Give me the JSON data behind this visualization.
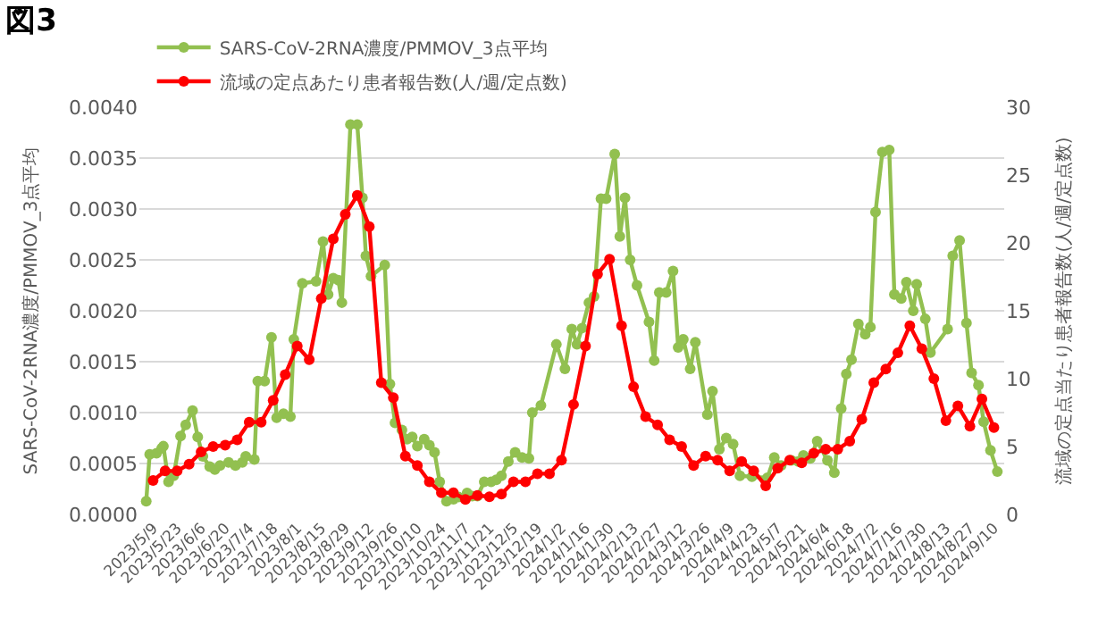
{
  "chart_data": {
    "type": "line",
    "title": "図3",
    "ylabel": "SARS-CoV-2RNA濃度/PMMOV_3点平均",
    "y2label": "流域の定点当たり患者報告数(人/週/定点数)",
    "xlim": [
      "2023-05-01",
      "2024-09-16"
    ],
    "xticks": [
      {
        "value": "2023-05-09",
        "label": "2023/5/9"
      },
      {
        "value": "2023-05-23",
        "label": "2023/5/23"
      },
      {
        "value": "2023-06-06",
        "label": "2023/6/6"
      },
      {
        "value": "2023-06-20",
        "label": "2023/6/20"
      },
      {
        "value": "2023-07-04",
        "label": "2023/7/4"
      },
      {
        "value": "2023-07-18",
        "label": "2023/7/18"
      },
      {
        "value": "2023-08-01",
        "label": "2023/8/1"
      },
      {
        "value": "2023-08-15",
        "label": "2023/8/15"
      },
      {
        "value": "2023-08-29",
        "label": "2023/8/29"
      },
      {
        "value": "2023-09-12",
        "label": "2023/9/12"
      },
      {
        "value": "2023-09-26",
        "label": "2023/9/26"
      },
      {
        "value": "2023-10-10",
        "label": "2023/10/10"
      },
      {
        "value": "2023-10-24",
        "label": "2023/10/24"
      },
      {
        "value": "2023-11-07",
        "label": "2023/11/7"
      },
      {
        "value": "2023-11-21",
        "label": "2023/11/21"
      },
      {
        "value": "2023-12-05",
        "label": "2023/12/5"
      },
      {
        "value": "2023-12-19",
        "label": "2023/12/19"
      },
      {
        "value": "2024-01-02",
        "label": "2024/1/2"
      },
      {
        "value": "2024-01-16",
        "label": "2024/1/16"
      },
      {
        "value": "2024-01-30",
        "label": "2024/1/30"
      },
      {
        "value": "2024-02-13",
        "label": "2024/2/13"
      },
      {
        "value": "2024-02-27",
        "label": "2024/2/27"
      },
      {
        "value": "2024-03-12",
        "label": "2024/3/12"
      },
      {
        "value": "2024-03-26",
        "label": "2024/3/26"
      },
      {
        "value": "2024-04-09",
        "label": "2024/4/9"
      },
      {
        "value": "2024-04-23",
        "label": "2024/4/23"
      },
      {
        "value": "2024-05-07",
        "label": "2024/5/7"
      },
      {
        "value": "2024-05-21",
        "label": "2024/5/21"
      },
      {
        "value": "2024-06-04",
        "label": "2024/6/4"
      },
      {
        "value": "2024-06-18",
        "label": "2024/6/18"
      },
      {
        "value": "2024-07-02",
        "label": "2024/7/2"
      },
      {
        "value": "2024-07-16",
        "label": "2024/7/16"
      },
      {
        "value": "2024-07-30",
        "label": "2024/7/30"
      },
      {
        "value": "2024-08-13",
        "label": "2024/8/13"
      },
      {
        "value": "2024-08-27",
        "label": "2024/8/27"
      },
      {
        "value": "2024-09-10",
        "label": "2024/9/10"
      }
    ],
    "ylim": [
      0,
      0.004
    ],
    "yticks": [
      {
        "value": 0,
        "label": "0.0000"
      },
      {
        "value": 0.0005,
        "label": "0.0005"
      },
      {
        "value": 0.001,
        "label": "0.0010"
      },
      {
        "value": 0.0015,
        "label": "0.0015"
      },
      {
        "value": 0.002,
        "label": "0.0020"
      },
      {
        "value": 0.0025,
        "label": "0.0025"
      },
      {
        "value": 0.003,
        "label": "0.0030"
      },
      {
        "value": 0.0035,
        "label": "0.0035"
      },
      {
        "value": 0.004,
        "label": "0.0040"
      }
    ],
    "y2lim": [
      0,
      30
    ],
    "y2ticks": [
      0,
      5,
      10,
      15,
      20,
      25,
      30
    ],
    "grid": "y",
    "legend": "top left",
    "marker": "circle",
    "line_style": "solid",
    "series": [
      {
        "name": "SARS-CoV-2RNA濃度/PMMOV_3点平均",
        "color": "#92c050",
        "x": [
          "2023-05-05",
          "2023-05-07",
          "2023-05-11",
          "2023-05-14",
          "2023-05-15",
          "2023-05-18",
          "2023-05-21",
          "2023-05-25",
          "2023-05-28",
          "2023-06-01",
          "2023-06-04",
          "2023-06-07",
          "2023-06-11",
          "2023-06-14",
          "2023-06-17",
          "2023-06-22",
          "2023-06-26",
          "2023-06-30",
          "2023-07-02",
          "2023-07-07",
          "2023-07-09",
          "2023-07-13",
          "2023-07-17",
          "2023-07-20",
          "2023-07-24",
          "2023-07-28",
          "2023-07-30",
          "2023-08-04",
          "2023-08-12",
          "2023-08-16",
          "2023-08-19",
          "2023-08-22",
          "2023-08-25",
          "2023-08-27",
          "2023-09-01",
          "2023-09-05",
          "2023-09-08",
          "2023-09-10",
          "2023-09-13",
          "2023-09-21",
          "2023-09-24",
          "2023-09-27",
          "2023-10-01",
          "2023-10-04",
          "2023-10-07",
          "2023-10-10",
          "2023-10-14",
          "2023-10-17",
          "2023-10-20",
          "2023-10-23",
          "2023-10-27",
          "2023-10-31",
          "2023-11-03",
          "2023-11-08",
          "2023-11-11",
          "2023-11-14",
          "2023-11-18",
          "2023-11-22",
          "2023-11-25",
          "2023-11-28",
          "2023-12-02",
          "2023-12-06",
          "2023-12-10",
          "2023-12-14",
          "2023-12-16",
          "2023-12-21",
          "2023-12-30",
          "2024-01-04",
          "2024-01-08",
          "2024-01-11",
          "2024-01-14",
          "2024-01-18",
          "2024-01-21",
          "2024-01-25",
          "2024-01-28",
          "2024-02-02",
          "2024-02-05",
          "2024-02-08",
          "2024-02-11",
          "2024-02-15",
          "2024-02-22",
          "2024-02-25",
          "2024-02-28",
          "2024-03-03",
          "2024-03-07",
          "2024-03-10",
          "2024-03-13",
          "2024-03-17",
          "2024-03-20",
          "2024-03-27",
          "2024-03-30",
          "2024-04-03",
          "2024-04-07",
          "2024-04-11",
          "2024-04-15",
          "2024-04-22",
          "2024-05-01",
          "2024-05-05",
          "2024-05-09",
          "2024-05-15",
          "2024-05-19",
          "2024-05-22",
          "2024-05-26",
          "2024-05-30",
          "2024-06-05",
          "2024-06-09",
          "2024-06-13",
          "2024-06-16",
          "2024-06-19",
          "2024-06-23",
          "2024-06-27",
          "2024-06-30",
          "2024-07-03",
          "2024-07-07",
          "2024-07-11",
          "2024-07-14",
          "2024-07-18",
          "2024-07-21",
          "2024-07-25",
          "2024-07-27",
          "2024-08-01",
          "2024-08-04",
          "2024-08-14",
          "2024-08-17",
          "2024-08-21",
          "2024-08-25",
          "2024-08-28",
          "2024-09-01",
          "2024-09-04",
          "2024-09-08",
          "2024-09-12"
        ],
        "values": [
          0.00013,
          0.00059,
          0.0006,
          0.00065,
          0.00067,
          0.00032,
          0.00038,
          0.00077,
          0.00088,
          0.00102,
          0.00076,
          0.00057,
          0.00047,
          0.00044,
          0.00048,
          0.00051,
          0.00048,
          0.00051,
          0.00057,
          0.00054,
          0.00131,
          0.00131,
          0.00174,
          0.00095,
          0.00099,
          0.00096,
          0.00172,
          0.00227,
          0.00229,
          0.00268,
          0.00216,
          0.00232,
          0.0023,
          0.00208,
          0.00383,
          0.00383,
          0.00311,
          0.00254,
          0.00234,
          0.00245,
          0.00128,
          0.0009,
          0.00083,
          0.00074,
          0.00076,
          0.00067,
          0.00074,
          0.00068,
          0.00061,
          0.00032,
          0.00013,
          0.00015,
          0.00017,
          0.00021,
          0.00018,
          0.00018,
          0.00032,
          0.00032,
          0.00034,
          0.00038,
          0.00052,
          0.00061,
          0.00056,
          0.00055,
          0.001,
          0.00107,
          0.00167,
          0.00143,
          0.00182,
          0.00167,
          0.00183,
          0.00208,
          0.00214,
          0.0031,
          0.0031,
          0.00354,
          0.00273,
          0.00311,
          0.0025,
          0.00225,
          0.00189,
          0.00151,
          0.00218,
          0.00218,
          0.00239,
          0.00164,
          0.00172,
          0.00143,
          0.00169,
          0.00098,
          0.00121,
          0.00064,
          0.00075,
          0.00069,
          0.00038,
          0.00037,
          0.00036,
          0.00056,
          0.00048,
          0.00053,
          0.00052,
          0.00058,
          0.00055,
          0.00072,
          0.00053,
          0.00041,
          0.00104,
          0.00138,
          0.00152,
          0.00187,
          0.00177,
          0.00184,
          0.00297,
          0.00356,
          0.00358,
          0.00216,
          0.00212,
          0.00228,
          0.002,
          0.00226,
          0.00192,
          0.00159,
          0.00182,
          0.00254,
          0.00269,
          0.00188,
          0.00139,
          0.00127,
          0.00091,
          0.00063,
          0.00042
        ]
      },
      {
        "name": "流域の定点あたり患者報告数(人/週/定点数)",
        "color": "#ff0000",
        "axis": "y2",
        "x": [
          "2023-05-09",
          "2023-05-16",
          "2023-05-23",
          "2023-05-30",
          "2023-06-06",
          "2023-06-13",
          "2023-06-20",
          "2023-06-27",
          "2023-07-04",
          "2023-07-11",
          "2023-07-18",
          "2023-07-25",
          "2023-08-01",
          "2023-08-08",
          "2023-08-15",
          "2023-08-22",
          "2023-08-29",
          "2023-09-05",
          "2023-09-12",
          "2023-09-19",
          "2023-09-26",
          "2023-10-03",
          "2023-10-10",
          "2023-10-17",
          "2023-10-24",
          "2023-10-31",
          "2023-11-07",
          "2023-11-14",
          "2023-11-21",
          "2023-11-28",
          "2023-12-05",
          "2023-12-12",
          "2023-12-19",
          "2023-12-26",
          "2024-01-02",
          "2024-01-09",
          "2024-01-16",
          "2024-01-23",
          "2024-01-30",
          "2024-02-06",
          "2024-02-13",
          "2024-02-20",
          "2024-02-27",
          "2024-03-05",
          "2024-03-12",
          "2024-03-19",
          "2024-03-26",
          "2024-04-02",
          "2024-04-09",
          "2024-04-16",
          "2024-04-23",
          "2024-04-30",
          "2024-05-07",
          "2024-05-14",
          "2024-05-21",
          "2024-05-28",
          "2024-06-04",
          "2024-06-11",
          "2024-06-18",
          "2024-06-25",
          "2024-07-02",
          "2024-07-09",
          "2024-07-16",
          "2024-07-23",
          "2024-07-30",
          "2024-08-06",
          "2024-08-13",
          "2024-08-20",
          "2024-08-27",
          "2024-09-03",
          "2024-09-10"
        ],
        "values": [
          2.5,
          3.2,
          3.2,
          3.7,
          4.6,
          5.0,
          5.1,
          5.5,
          6.8,
          6.8,
          8.4,
          10.3,
          12.4,
          11.4,
          15.9,
          20.3,
          22.1,
          23.5,
          21.2,
          9.7,
          8.6,
          4.3,
          3.6,
          2.4,
          1.6,
          1.6,
          1.1,
          1.4,
          1.3,
          1.5,
          2.4,
          2.4,
          3.0,
          3.0,
          4.0,
          8.1,
          12.4,
          17.7,
          18.8,
          13.9,
          9.4,
          7.2,
          6.6,
          5.5,
          5.0,
          3.6,
          4.3,
          4.0,
          3.2,
          3.9,
          3.2,
          2.1,
          3.4,
          4.0,
          3.8,
          4.5,
          4.8,
          4.8,
          5.4,
          7.0,
          9.7,
          10.7,
          11.9,
          13.9,
          12.2,
          10.0,
          6.9,
          8.0,
          6.5,
          8.5,
          6.4
        ]
      }
    ]
  }
}
